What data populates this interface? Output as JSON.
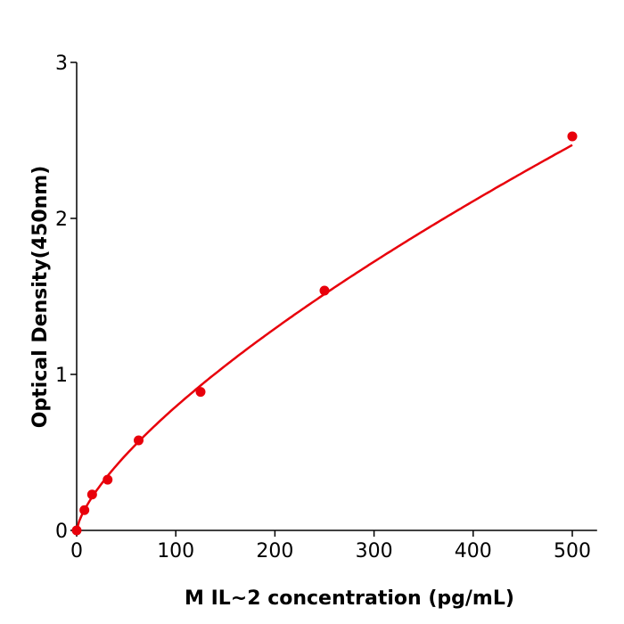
{
  "chart_data": {
    "type": "scatter",
    "title": "",
    "xlabel": "M  IL~2 concentration (pg/mL)",
    "ylabel": "Optical Density(450nm)",
    "xlim": [
      0,
      525
    ],
    "ylim": [
      0,
      3
    ],
    "xticks": [
      "0",
      "100",
      "200",
      "300",
      "400",
      "500"
    ],
    "yticks": [
      "0",
      "1",
      "2",
      "3"
    ],
    "grid": false,
    "legend": "none",
    "color": "#e8000b",
    "series": [
      {
        "x": [
          0,
          7.8,
          15.6,
          31.25,
          62.5,
          125,
          250,
          500
        ],
        "y": [
          0.0,
          0.13,
          0.23,
          0.325,
          0.577,
          0.888,
          1.537,
          2.526
        ],
        "fitted_curve": true
      }
    ]
  }
}
